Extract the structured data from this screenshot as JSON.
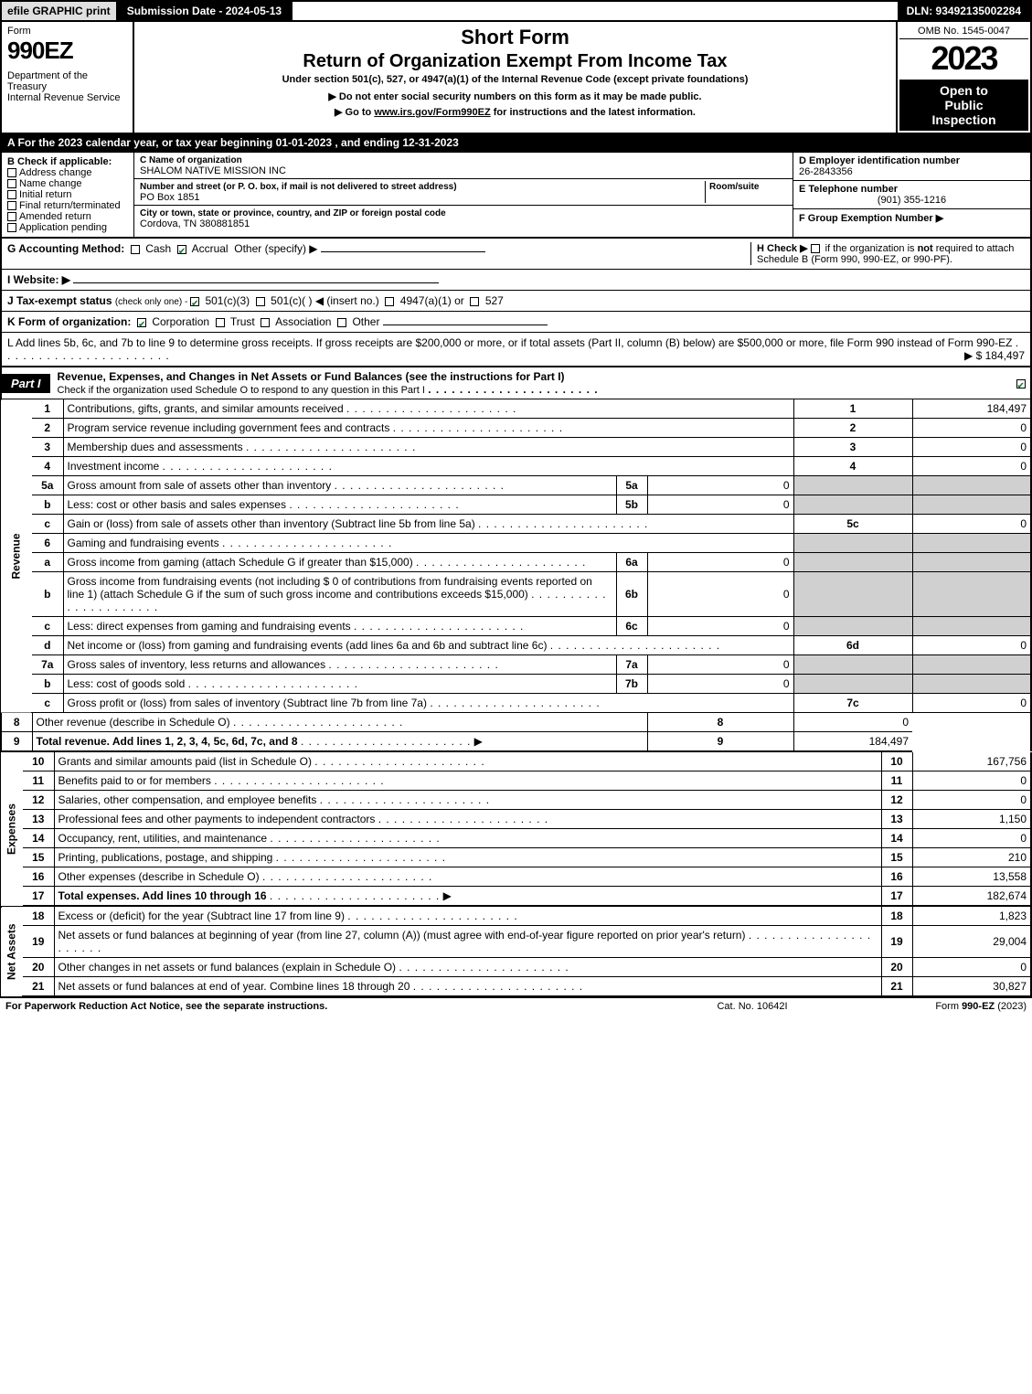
{
  "topbar": {
    "efile": "efile GRAPHIC print",
    "submission": "Submission Date - 2024-05-13",
    "dln": "DLN: 93492135002284"
  },
  "header": {
    "form_word": "Form",
    "form_num": "990EZ",
    "dept": "Department of the Treasury\nInternal Revenue Service",
    "title1": "Short Form",
    "title2": "Return of Organization Exempt From Income Tax",
    "subtitle": "Under section 501(c), 527, or 4947(a)(1) of the Internal Revenue Code (except private foundations)",
    "hint1": "▶ Do not enter social security numbers on this form as it may be made public.",
    "hint2": "▶ Go to www.irs.gov/Form990EZ for instructions and the latest information.",
    "omb": "OMB No. 1545-0047",
    "year": "2023",
    "open1": "Open to",
    "open2": "Public",
    "open3": "Inspection"
  },
  "lineA": "A  For the 2023 calendar year, or tax year beginning 01-01-2023 , and ending 12-31-2023",
  "sectionB": {
    "title": "B  Check if applicable:",
    "opts": [
      "Address change",
      "Name change",
      "Initial return",
      "Final return/terminated",
      "Amended return",
      "Application pending"
    ]
  },
  "sectionC": {
    "name_lbl": "C Name of organization",
    "name": "SHALOM NATIVE MISSION INC",
    "street_lbl": "Number and street (or P. O. box, if mail is not delivered to street address)",
    "room_lbl": "Room/suite",
    "street": "PO Box 1851",
    "city_lbl": "City or town, state or province, country, and ZIP or foreign postal code",
    "city": "Cordova, TN  380881851"
  },
  "sectionDEF": {
    "d_lbl": "D Employer identification number",
    "d_val": "26-2843356",
    "e_lbl": "E Telephone number",
    "e_val": "(901) 355-1216",
    "f_lbl": "F Group Exemption Number   ▶"
  },
  "rowG": {
    "lbl": "G Accounting Method:",
    "cash": "Cash",
    "accrual": "Accrual",
    "other": "Other (specify) ▶"
  },
  "rowH": {
    "lbl": "H  Check ▶",
    "txt": "if the organization is not required to attach Schedule B (Form 990, 990-EZ, or 990-PF)."
  },
  "rowI": {
    "lbl": "I Website: ▶"
  },
  "rowJ": {
    "lbl": "J Tax-exempt status",
    "sub": "(check only one) - ",
    "o1": "501(c)(3)",
    "o2": "501(c)(   ) ◀ (insert no.)",
    "o3": "4947(a)(1) or",
    "o4": "527"
  },
  "rowK": {
    "lbl": "K Form of organization:",
    "o1": "Corporation",
    "o2": "Trust",
    "o3": "Association",
    "o4": "Other"
  },
  "rowL": {
    "txt": "L Add lines 5b, 6c, and 7b to line 9 to determine gross receipts. If gross receipts are $200,000 or more, or if total assets (Part II, column (B) below) are $500,000 or more, file Form 990 instead of Form 990-EZ",
    "amt": "▶ $ 184,497"
  },
  "partI": {
    "tab": "Part I",
    "title": "Revenue, Expenses, and Changes in Net Assets or Fund Balances (see the instructions for Part I)",
    "check_txt": "Check if the organization used Schedule O to respond to any question in this Part I"
  },
  "side": {
    "revenue": "Revenue",
    "expenses": "Expenses",
    "netassets": "Net Assets"
  },
  "lines": [
    {
      "n": "1",
      "d": "Contributions, gifts, grants, and similar amounts received",
      "r": "1",
      "v": "184,497"
    },
    {
      "n": "2",
      "d": "Program service revenue including government fees and contracts",
      "r": "2",
      "v": "0"
    },
    {
      "n": "3",
      "d": "Membership dues and assessments",
      "r": "3",
      "v": "0"
    },
    {
      "n": "4",
      "d": "Investment income",
      "r": "4",
      "v": "0"
    },
    {
      "n": "5a",
      "d": "Gross amount from sale of assets other than inventory",
      "sr": "5a",
      "sv": "0",
      "shade": true
    },
    {
      "n": "b",
      "d": "Less: cost or other basis and sales expenses",
      "sr": "5b",
      "sv": "0",
      "shade": true
    },
    {
      "n": "c",
      "d": "Gain or (loss) from sale of assets other than inventory (Subtract line 5b from line 5a)",
      "r": "5c",
      "v": "0"
    },
    {
      "n": "6",
      "d": "Gaming and fundraising events",
      "shade": true
    },
    {
      "n": "a",
      "d": "Gross income from gaming (attach Schedule G if greater than $15,000)",
      "sr": "6a",
      "sv": "0",
      "shade": true
    },
    {
      "n": "b",
      "d": "Gross income from fundraising events (not including $  0            of contributions from fundraising events reported on line 1) (attach Schedule G if the sum of such gross income and contributions exceeds $15,000)",
      "sr": "6b",
      "sv": "0",
      "shade": true
    },
    {
      "n": "c",
      "d": "Less: direct expenses from gaming and fundraising events",
      "sr": "6c",
      "sv": "0",
      "shade": true
    },
    {
      "n": "d",
      "d": "Net income or (loss) from gaming and fundraising events (add lines 6a and 6b and subtract line 6c)",
      "r": "6d",
      "v": "0"
    },
    {
      "n": "7a",
      "d": "Gross sales of inventory, less returns and allowances",
      "sr": "7a",
      "sv": "0",
      "shade": true
    },
    {
      "n": "b",
      "d": "Less: cost of goods sold",
      "sr": "7b",
      "sv": "0",
      "shade": true
    },
    {
      "n": "c",
      "d": "Gross profit or (loss) from sales of inventory (Subtract line 7b from line 7a)",
      "r": "7c",
      "v": "0"
    },
    {
      "n": "8",
      "d": "Other revenue (describe in Schedule O)",
      "r": "8",
      "v": "0"
    },
    {
      "n": "9",
      "d": "Total revenue. Add lines 1, 2, 3, 4, 5c, 6d, 7c, and 8",
      "r": "9",
      "v": "184,497",
      "bold": true,
      "arrow": true,
      "heavy": true
    }
  ],
  "expenses": [
    {
      "n": "10",
      "d": "Grants and similar amounts paid (list in Schedule O)",
      "r": "10",
      "v": "167,756"
    },
    {
      "n": "11",
      "d": "Benefits paid to or for members",
      "r": "11",
      "v": "0"
    },
    {
      "n": "12",
      "d": "Salaries, other compensation, and employee benefits",
      "r": "12",
      "v": "0"
    },
    {
      "n": "13",
      "d": "Professional fees and other payments to independent contractors",
      "r": "13",
      "v": "1,150"
    },
    {
      "n": "14",
      "d": "Occupancy, rent, utilities, and maintenance",
      "r": "14",
      "v": "0"
    },
    {
      "n": "15",
      "d": "Printing, publications, postage, and shipping",
      "r": "15",
      "v": "210"
    },
    {
      "n": "16",
      "d": "Other expenses (describe in Schedule O)",
      "r": "16",
      "v": "13,558"
    },
    {
      "n": "17",
      "d": "Total expenses. Add lines 10 through 16",
      "r": "17",
      "v": "182,674",
      "bold": true,
      "arrow": true,
      "heavy": true
    }
  ],
  "netassets": [
    {
      "n": "18",
      "d": "Excess or (deficit) for the year (Subtract line 17 from line 9)",
      "r": "18",
      "v": "1,823"
    },
    {
      "n": "19",
      "d": "Net assets or fund balances at beginning of year (from line 27, column (A)) (must agree with end-of-year figure reported on prior year's return)",
      "r": "19",
      "v": "29,004"
    },
    {
      "n": "20",
      "d": "Other changes in net assets or fund balances (explain in Schedule O)",
      "r": "20",
      "v": "0"
    },
    {
      "n": "21",
      "d": "Net assets or fund balances at end of year. Combine lines 18 through 20",
      "r": "21",
      "v": "30,827",
      "heavy": true
    }
  ],
  "footer": {
    "left": "For Paperwork Reduction Act Notice, see the separate instructions.",
    "mid": "Cat. No. 10642I",
    "right": "Form 990-EZ (2023)"
  }
}
